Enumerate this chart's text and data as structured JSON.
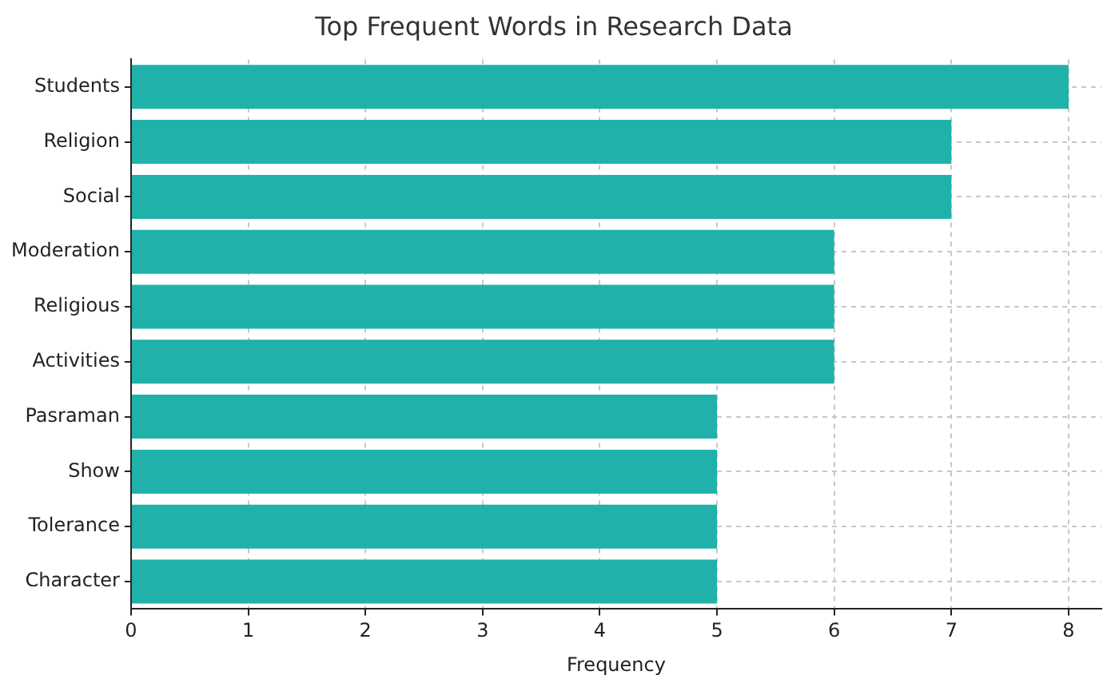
{
  "chart_data": {
    "type": "bar",
    "orientation": "horizontal",
    "title": "Top Frequent Words in Research Data",
    "xlabel": "Frequency",
    "categories": [
      "Students",
      "Religion",
      "Social",
      "Moderation",
      "Religious",
      "Activities",
      "Pasraman",
      "Show",
      "Tolerance",
      "Character"
    ],
    "values": [
      8,
      7,
      7,
      6,
      6,
      6,
      5,
      5,
      5,
      5
    ],
    "color": "#20b2aa",
    "xlim": [
      0,
      8.28
    ],
    "xticks": [
      0,
      1,
      2,
      3,
      4,
      5,
      6,
      7,
      8
    ],
    "grid": true
  }
}
